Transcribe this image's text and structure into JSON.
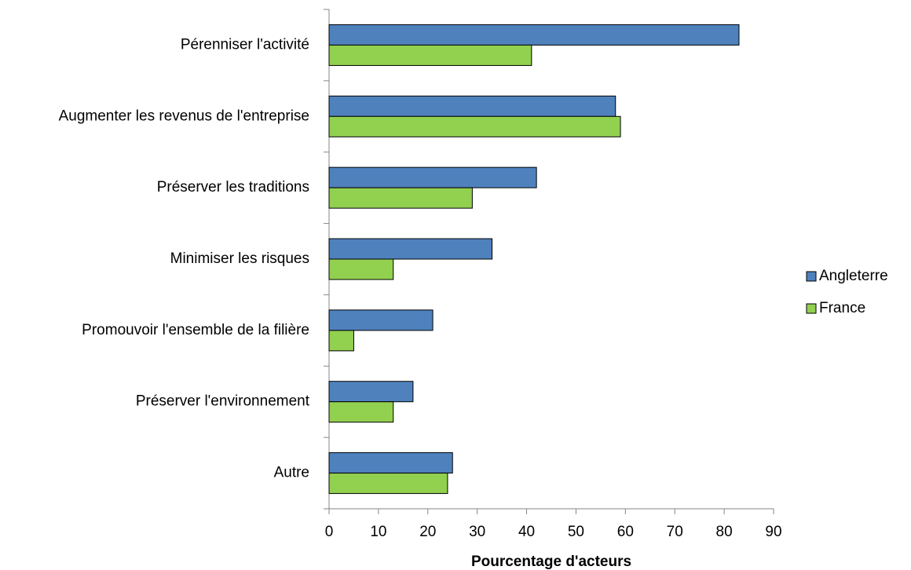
{
  "chart_data": {
    "type": "bar",
    "orientation": "horizontal",
    "x_label": "Pourcentage d'acteurs",
    "categories": [
      "Pérenniser l'activité",
      "Augmenter les revenus de l'entreprise",
      "Préserver les traditions",
      "Minimiser les risques",
      "Promouvoir l'ensemble de la filière",
      "Préserver l'environnement",
      "Autre"
    ],
    "series": [
      {
        "name": "Angleterre",
        "color": "#4f81bd",
        "values": [
          83,
          58,
          42,
          33,
          21,
          17,
          25
        ]
      },
      {
        "name": "France",
        "color": "#92d050",
        "values": [
          41,
          59,
          29,
          13,
          5,
          13,
          24
        ]
      }
    ],
    "xlim": [
      0,
      90
    ],
    "xticks": [
      0,
      10,
      20,
      30,
      40,
      50,
      60,
      70,
      80,
      90
    ],
    "grid": false,
    "legend": "right"
  }
}
